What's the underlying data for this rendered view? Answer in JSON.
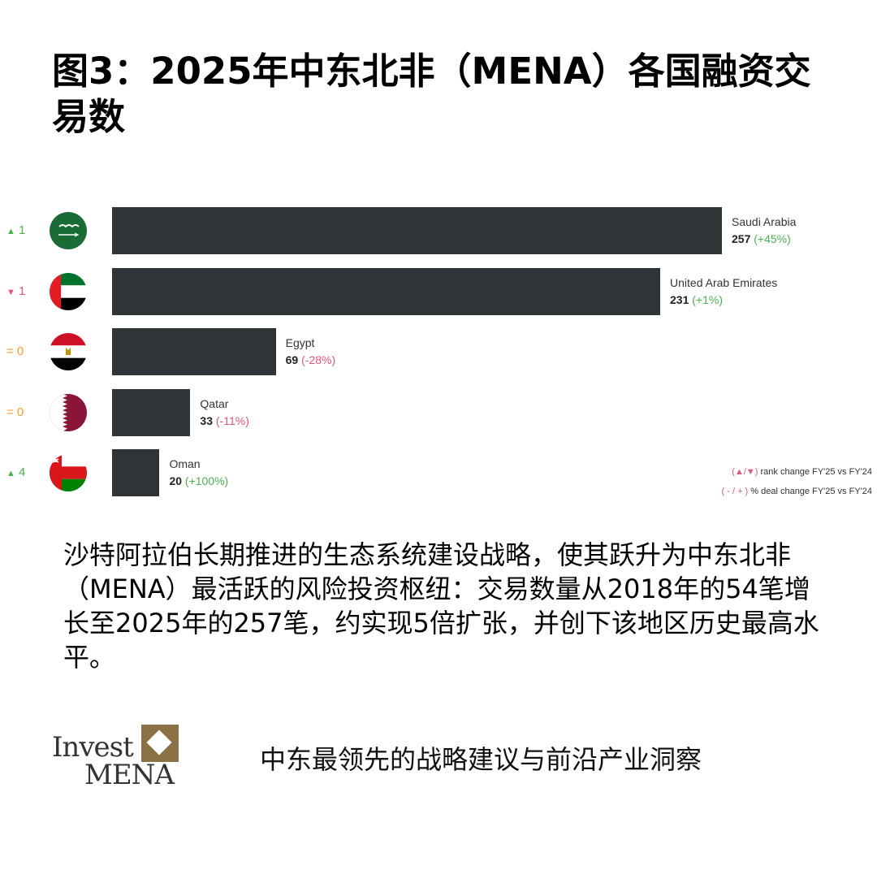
{
  "title": "图3：2025年中东北非（MENA）各国融资交易数",
  "chart_data": {
    "type": "bar",
    "orientation": "horizontal",
    "categories": [
      "Saudi Arabia",
      "United Arab Emirates",
      "Egypt",
      "Qatar",
      "Oman"
    ],
    "values": [
      257,
      231,
      69,
      33,
      20
    ],
    "deal_change": [
      "+45%",
      "+1%",
      "-28%",
      "-11%",
      "+100%"
    ],
    "rank_change": [
      {
        "arrow": "▲",
        "value": "1",
        "color": "#4caf50"
      },
      {
        "arrow": "▼",
        "value": "1",
        "color": "#e0557a"
      },
      {
        "arrow": "=",
        "value": "0",
        "color": "#f0a030"
      },
      {
        "arrow": "=",
        "value": "0",
        "color": "#f0a030"
      },
      {
        "arrow": "▲",
        "value": "4",
        "color": "#4caf50"
      }
    ],
    "flags": [
      "saudi-arabia-flag-icon",
      "uae-flag-icon",
      "egypt-flag-icon",
      "qatar-flag-icon",
      "oman-flag-icon"
    ],
    "bar_color": "#2f3537",
    "positive_color": "#4caf50",
    "negative_color": "#e0557a",
    "legend": [
      {
        "symbols": "(▲/▼)",
        "label": "rank change FY'25 vs FY'24"
      },
      {
        "symbols": "( - / + )",
        "label": "% deal change FY'25 vs FY'24"
      }
    ]
  },
  "body_text": "沙特阿拉伯长期推进的生态系统建设战略，使其跃升为中东北非（MENA）最活跃的风险投资枢纽：交易数量从2018年的54笔增长至2025年的257笔，约实现5倍扩张，并创下该地区历史最高水平。",
  "logo": {
    "line1": "Invest",
    "line2": "MENA",
    "color": "#8a7146"
  },
  "tagline": "中东最领先的战略建议与前沿产业洞察"
}
